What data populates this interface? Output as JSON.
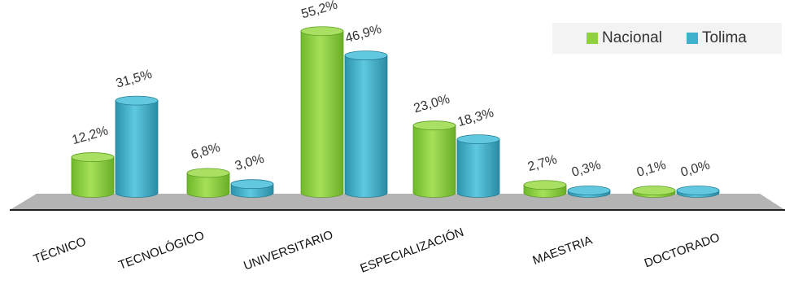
{
  "chart_data": {
    "type": "bar",
    "title": "",
    "xlabel": "",
    "ylabel": "",
    "categories": [
      "TÉCNICO",
      "TECNOLÓGICO",
      "UNIVERSITARIO",
      "ESPECIALIZACIÓN",
      "MAESTRIA",
      "DOCTORADO"
    ],
    "series": [
      {
        "name": "Nacional",
        "values": [
          12.2,
          6.8,
          55.2,
          23.0,
          2.7,
          0.1
        ],
        "labels": [
          "12,2%",
          "6,8%",
          "55,2%",
          "23,0%",
          "2,7%",
          "0,1%"
        ],
        "color": "#8fd13f"
      },
      {
        "name": "Tolima",
        "values": [
          31.5,
          3.0,
          46.9,
          18.3,
          0.3,
          0.0
        ],
        "labels": [
          "31,5%",
          "3,0%",
          "46,9%",
          "18,3%",
          "0,3%",
          "0,0%"
        ],
        "color": "#3eb1cc"
      }
    ],
    "ylim": [
      0,
      60
    ],
    "legend_position": "top-right",
    "grid": false,
    "style": "3d-cylinder"
  }
}
